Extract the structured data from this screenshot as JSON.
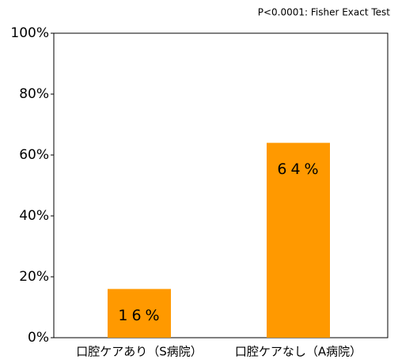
{
  "chart_data": {
    "type": "bar",
    "annotation": "P<0.0001: Fisher Exact Test",
    "categories": [
      "口腔ケアあり（S病院）",
      "口腔ケアなし（A病院）"
    ],
    "values": [
      16,
      64
    ],
    "value_labels": [
      "16%",
      "64%"
    ],
    "color": "#ff9900",
    "ylim": [
      0,
      100
    ],
    "yticks": [
      {
        "value": 0,
        "label": "0%"
      },
      {
        "value": 20,
        "label": "20%"
      },
      {
        "value": 40,
        "label": "40%"
      },
      {
        "value": 60,
        "label": "60%"
      },
      {
        "value": 80,
        "label": "80%"
      },
      {
        "value": 100,
        "label": "100%"
      }
    ]
  }
}
